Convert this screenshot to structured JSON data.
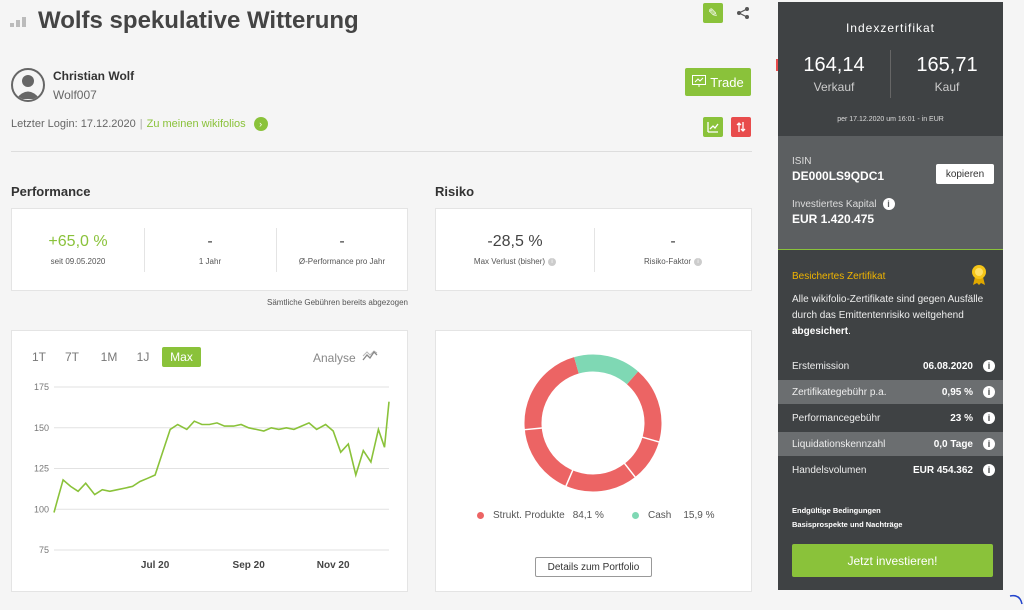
{
  "header": {
    "title": "Wolfs spekulative Witterung"
  },
  "user": {
    "name": "Christian Wolf",
    "handle": "Wolf007",
    "trade_label": "Trade"
  },
  "login": {
    "text": "Letzter Login: 17.12.2020",
    "separator": "|",
    "link": "Zu meinen wikifolios"
  },
  "performance": {
    "title": "Performance",
    "metrics": [
      {
        "value": "+65,0 %",
        "label": "seit 09.05.2020"
      },
      {
        "value": "-",
        "label": "1 Jahr"
      },
      {
        "value": "-",
        "label": "Ø-Performance pro Jahr"
      }
    ],
    "note": "Sämtliche Gebühren bereits abgezogen"
  },
  "risk": {
    "title": "Risiko",
    "metrics": [
      {
        "value": "-28,5 %",
        "label": "Max Verlust (bisher)"
      },
      {
        "value": "-",
        "label": "Risiko-Faktor"
      }
    ]
  },
  "chart_tabs": [
    "1T",
    "7T",
    "1M",
    "1J",
    "Max"
  ],
  "chart_active_tab": "Max",
  "analyse_label": "Analyse",
  "line_chart": {
    "type": "line",
    "y_ticks": [
      "175",
      "150",
      "125",
      "100",
      "75"
    ],
    "x_ticks": [
      "Jul 20",
      "Sep 20",
      "Nov 20"
    ],
    "ylim": [
      75,
      175
    ]
  },
  "chart_data": [
    {
      "type": "line",
      "title": "",
      "xlabel": "",
      "ylabel": "",
      "ylim": [
        75,
        175
      ],
      "x_tick_labels": [
        "Jul 20",
        "Sep 20",
        "Nov 20"
      ],
      "y_tick_labels": [
        "175",
        "150",
        "125",
        "100",
        "75"
      ],
      "series": [
        {
          "x": [
            "2020-05-09",
            "2020-05-12",
            "2020-05-15",
            "2020-05-20",
            "2020-05-25",
            "2020-05-30",
            "2020-06-05",
            "2020-06-10",
            "2020-06-15",
            "2020-06-20",
            "2020-06-25",
            "2020-06-30",
            "2020-07-05",
            "2020-07-10",
            "2020-07-15",
            "2020-07-20",
            "2020-07-25",
            "2020-07-30",
            "2020-08-05",
            "2020-08-10",
            "2020-08-15",
            "2020-08-20",
            "2020-08-25",
            "2020-08-30",
            "2020-09-05",
            "2020-09-10",
            "2020-09-15",
            "2020-09-20",
            "2020-09-25",
            "2020-09-30",
            "2020-10-05",
            "2020-10-10",
            "2020-10-15",
            "2020-10-20",
            "2020-10-25",
            "2020-10-30",
            "2020-11-05",
            "2020-11-10",
            "2020-11-15",
            "2020-11-20",
            "2020-11-25",
            "2020-11-30",
            "2020-12-05",
            "2020-12-10",
            "2020-12-14",
            "2020-12-17"
          ],
          "y": [
            98,
            108,
            118,
            114,
            111,
            116,
            109,
            112,
            111,
            112,
            113,
            114,
            117,
            119,
            121,
            135,
            149,
            152,
            149,
            154,
            152,
            152,
            153,
            151,
            151,
            152,
            150,
            149,
            148,
            150,
            149,
            150,
            149,
            151,
            153,
            149,
            152,
            148,
            135,
            140,
            121,
            136,
            129,
            149,
            138,
            166
          ]
        }
      ]
    },
    {
      "type": "pie",
      "title": "",
      "labels": [
        "Strukt. Produkte",
        "Cash"
      ],
      "values": [
        84.1,
        15.9
      ],
      "colors": [
        "#ec6464",
        "#7fd8b4"
      ]
    }
  ],
  "allocation": {
    "items": [
      {
        "label": "Strukt. Produkte",
        "value": "84,1 %",
        "color": "#ec6464"
      },
      {
        "label": "Cash",
        "value": "15,9 %",
        "color": "#7fd8b4"
      }
    ],
    "details_label": "Details zum Portfolio"
  },
  "sidebar": {
    "title": "Indexzertifikat",
    "sell_price": "164,14",
    "sell_label": "Verkauf",
    "buy_price": "165,71",
    "buy_label": "Kauf",
    "as_of": "per 17.12.2020 um 16:01 - in EUR",
    "isin_label": "ISIN",
    "isin": "DE000LS9QDC1",
    "copy_label": "kopieren",
    "capital_label": "Investiertes Kapital",
    "capital": "EUR 1.420.475",
    "secured_title": "Besichertes Zertifikat",
    "secured_text": "Alle wikifolio-Zertifikate sind gegen Ausfälle durch das Emittentenrisiko weitgehend",
    "secured_bold": "abgesichert",
    "rows": [
      {
        "key": "Erstemission",
        "value": "06.08.2020"
      },
      {
        "key": "Zertifikategebühr p.a.",
        "value": "0,95 %"
      },
      {
        "key": "Performancegebühr",
        "value": "23 %"
      },
      {
        "key": "Liquidationskennzahl",
        "value": "0,0 Tage"
      },
      {
        "key": "Handelsvolumen",
        "value": "EUR 454.362"
      }
    ],
    "links": [
      "Endgültige Bedingungen",
      "Basisprospekte und Nachträge"
    ],
    "invest_label": "Jetzt investieren!"
  }
}
